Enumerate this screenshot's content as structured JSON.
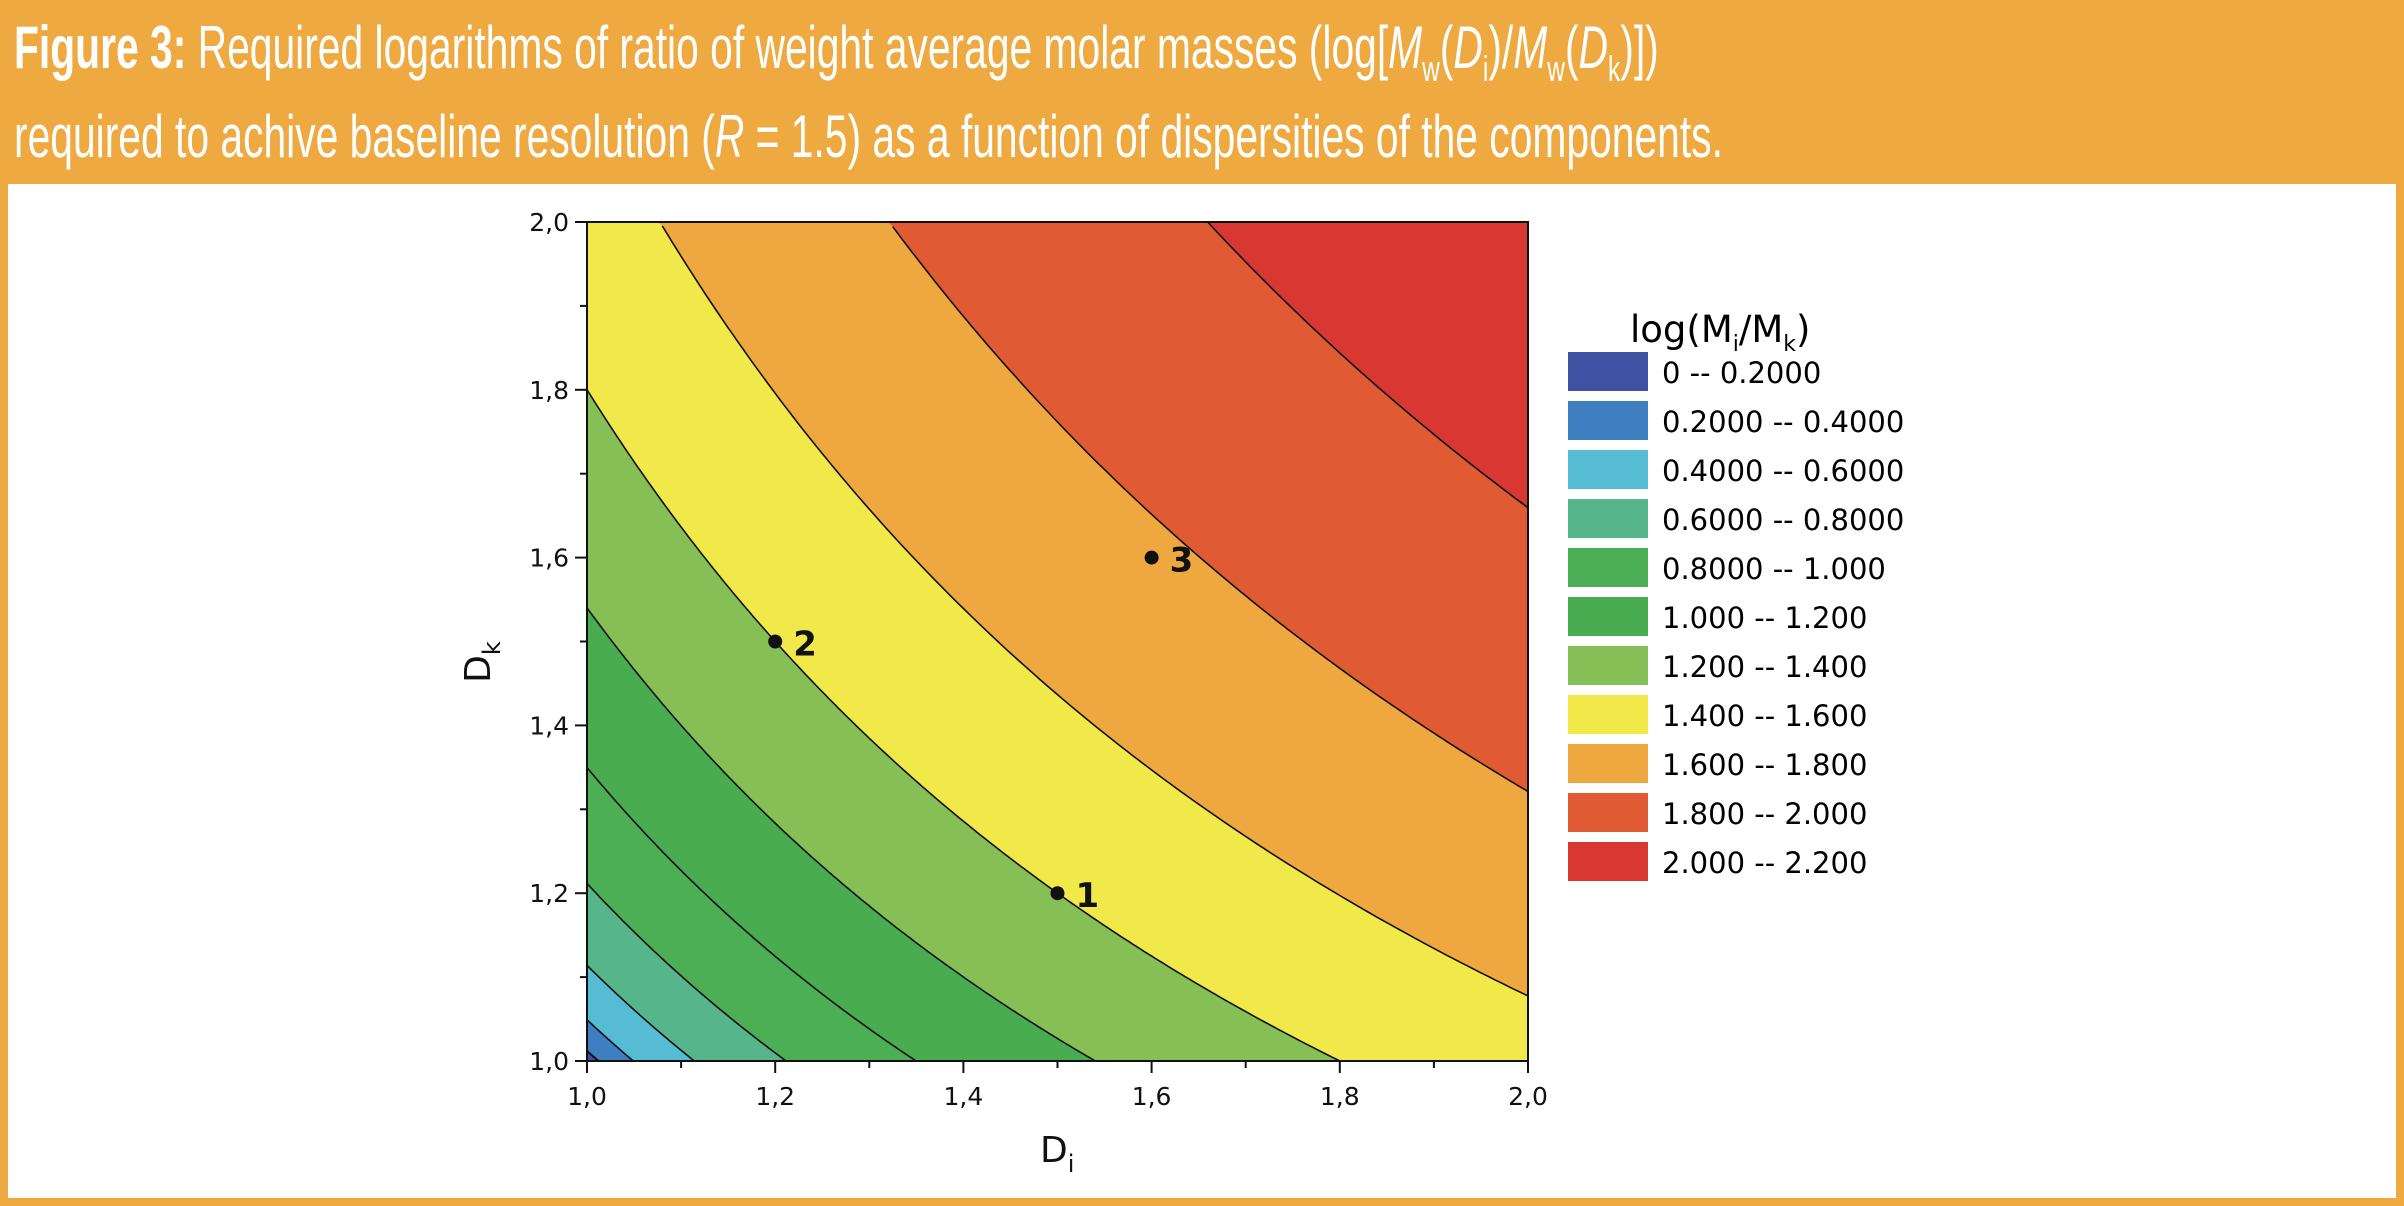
{
  "figure": {
    "label": "Figure 3:",
    "caption_parts": {
      "a": " Required logarithms of ratio of weight average molar masses (log[",
      "m1": "M",
      "w1": "w",
      "p1": "(",
      "d1": "D",
      "i1": "i",
      "p2": ")/",
      "m2": "M",
      "w2": "w",
      "p3": "(",
      "d2": "D",
      "k1": "k",
      "p4": ")])",
      "b": "required to achive baseline resolution (",
      "r": "R",
      "c": " = 1.5) as a function of dispersities of the components."
    }
  },
  "colors": {
    "header": "#eeaa41",
    "text_on_header": "#ffffff",
    "contour_line": "#111111"
  },
  "chart_data": {
    "type": "contour",
    "xlabel": {
      "main": "D",
      "sub": "i"
    },
    "ylabel": {
      "main": "D",
      "sub": "k"
    },
    "xlim": [
      1.0,
      2.0
    ],
    "ylim": [
      1.0,
      2.0
    ],
    "xticks": [
      "1,0",
      "1,2",
      "1,4",
      "1,6",
      "1,8",
      "2,0"
    ],
    "yticks": [
      "1,0",
      "1,2",
      "1,4",
      "1,6",
      "1,8",
      "2,0"
    ],
    "grid": false,
    "legend": {
      "title": {
        "main": "log(M",
        "sub1": "i",
        "mid": "/M",
        "sub2": "k",
        "end": ")"
      },
      "placement": "right",
      "bands": [
        {
          "label": "0 -- 0.2000",
          "from": 0,
          "to": 0.2,
          "color": "#3f51a3"
        },
        {
          "label": "0.2000 -- 0.4000",
          "from": 0.2,
          "to": 0.4,
          "color": "#3f7fc1"
        },
        {
          "label": "0.4000 -- 0.6000",
          "from": 0.4,
          "to": 0.6,
          "color": "#56bcd4"
        },
        {
          "label": "0.6000 -- 0.8000",
          "from": 0.6,
          "to": 0.8,
          "color": "#56b58a"
        },
        {
          "label": "0.8000 -- 1.000",
          "from": 0.8,
          "to": 1.0,
          "color": "#4cae55"
        },
        {
          "label": "1.000 -- 1.200",
          "from": 1.0,
          "to": 1.2,
          "color": "#4aac50"
        },
        {
          "label": "1.200 -- 1.400",
          "from": 1.2,
          "to": 1.4,
          "color": "#85bf56"
        },
        {
          "label": "1.400 -- 1.600",
          "from": 1.4,
          "to": 1.6,
          "color": "#f1e94a"
        },
        {
          "label": "1.600 -- 1.800",
          "from": 1.6,
          "to": 1.8,
          "color": "#eea83f"
        },
        {
          "label": "1.800 -- 2.000",
          "from": 1.8,
          "to": 2.0,
          "color": "#e05a33"
        },
        {
          "label": "2.000 -- 2.200",
          "from": 2.0,
          "to": 2.2,
          "color": "#d93832"
        }
      ]
    },
    "points": [
      {
        "label": "1",
        "x": 1.5,
        "y": 1.2
      },
      {
        "label": "2",
        "x": 1.2,
        "y": 1.5
      },
      {
        "label": "3",
        "x": 1.6,
        "y": 1.6
      }
    ]
  }
}
